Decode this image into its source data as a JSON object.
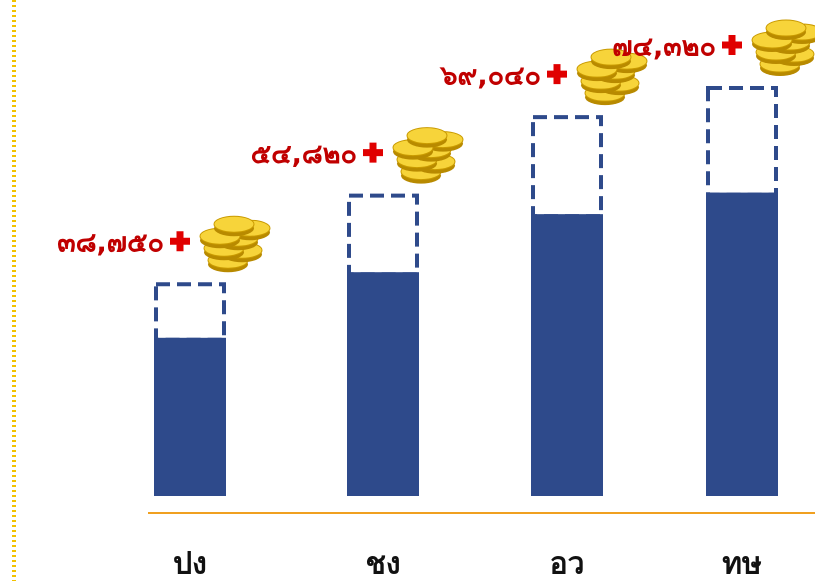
{
  "chart_data": {
    "type": "bar",
    "categories": [
      "ปง",
      "ชง",
      "อว",
      "ทษ"
    ],
    "values": [
      38750,
      54820,
      69040,
      74320
    ],
    "value_labels": [
      "๓๘,๗๕๐",
      "๕๔,๘๒๐",
      "๖๙,๐๔๐",
      "๗๔,๓๒๐"
    ],
    "color": "#2e4a8b"
  }
}
